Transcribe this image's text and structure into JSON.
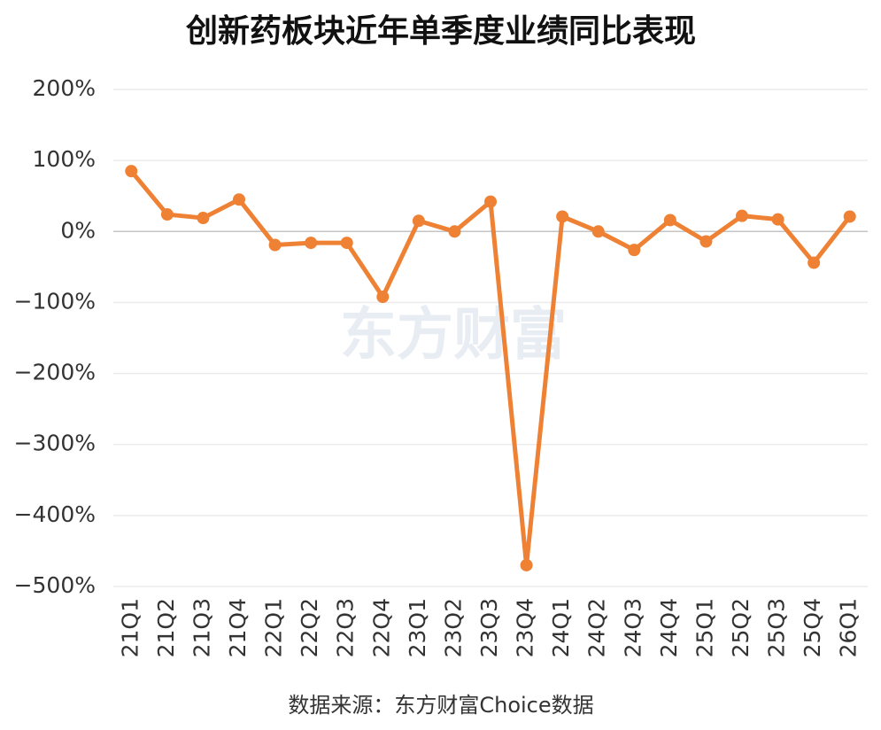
{
  "chart_data": {
    "type": "line",
    "title": "创新药板块近年单季度业绩同比表现",
    "categories": [
      "21Q1",
      "21Q2",
      "21Q3",
      "21Q4",
      "22Q1",
      "22Q2",
      "22Q3",
      "22Q4",
      "23Q1",
      "23Q2",
      "23Q3",
      "23Q4",
      "24Q1",
      "24Q2",
      "24Q3",
      "24Q4",
      "25Q1",
      "25Q2",
      "25Q3",
      "25Q4",
      "26Q1"
    ],
    "series": [
      {
        "color": "#ee8133",
        "values": [
          85,
          24,
          19,
          45,
          -19,
          -16,
          -16,
          -92,
          15,
          0,
          42,
          -470,
          21,
          0,
          -26,
          16,
          -14,
          22,
          17,
          -44,
          21
        ]
      }
    ],
    "ylim": [
      -500,
      200
    ],
    "yticks": [
      {
        "value": -500,
        "label": "−500%"
      },
      {
        "value": -400,
        "label": "−400%"
      },
      {
        "value": -300,
        "label": "−300%"
      },
      {
        "value": -200,
        "label": "−200%"
      },
      {
        "value": -100,
        "label": "−100%"
      },
      {
        "value": 0,
        "label": "0%"
      },
      {
        "value": 100,
        "label": "100%"
      },
      {
        "value": 200,
        "label": "200%"
      }
    ],
    "grid": true,
    "watermark": "东方财富",
    "source": "数据来源：东方财富Choice数据"
  }
}
